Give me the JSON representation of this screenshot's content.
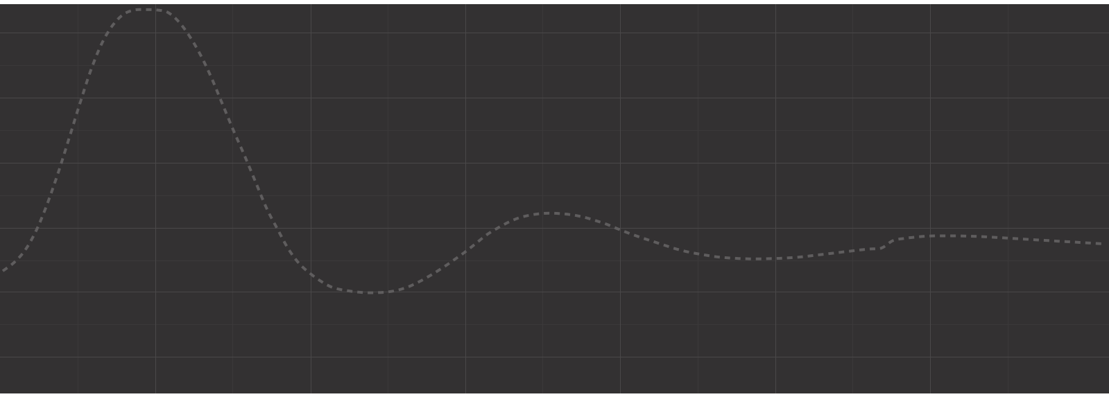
{
  "graph": {
    "type": "line",
    "line_style": "dashed",
    "grid": true,
    "colors": {
      "background": "#333132",
      "grid_major": "#4a4849",
      "grid_minor": "#3b393a",
      "curve": "#5f5d5e"
    },
    "curve_points": [
      [
        0.0,
        0.8
      ],
      [
        0.01,
        0.775
      ],
      [
        0.02,
        0.738
      ],
      [
        0.03,
        0.68
      ],
      [
        0.04,
        0.6
      ],
      [
        0.05,
        0.505
      ],
      [
        0.06,
        0.4
      ],
      [
        0.07,
        0.292
      ],
      [
        0.08,
        0.19
      ],
      [
        0.09,
        0.108
      ],
      [
        0.1,
        0.052
      ],
      [
        0.11,
        0.018
      ],
      [
        0.12,
        0.005
      ],
      [
        0.13,
        0.004
      ],
      [
        0.14,
        0.005
      ],
      [
        0.15,
        0.012
      ],
      [
        0.16,
        0.04
      ],
      [
        0.17,
        0.085
      ],
      [
        0.18,
        0.142
      ],
      [
        0.19,
        0.212
      ],
      [
        0.2,
        0.292
      ],
      [
        0.21,
        0.372
      ],
      [
        0.22,
        0.448
      ],
      [
        0.23,
        0.528
      ],
      [
        0.24,
        0.608
      ],
      [
        0.25,
        0.672
      ],
      [
        0.26,
        0.733
      ],
      [
        0.27,
        0.778
      ],
      [
        0.28,
        0.808
      ],
      [
        0.29,
        0.832
      ],
      [
        0.3,
        0.85
      ],
      [
        0.31,
        0.858
      ],
      [
        0.32,
        0.863
      ],
      [
        0.33,
        0.866
      ],
      [
        0.34,
        0.866
      ],
      [
        0.35,
        0.864
      ],
      [
        0.36,
        0.858
      ],
      [
        0.37,
        0.847
      ],
      [
        0.38,
        0.831
      ],
      [
        0.39,
        0.812
      ],
      [
        0.4,
        0.791
      ],
      [
        0.41,
        0.768
      ],
      [
        0.42,
        0.744
      ],
      [
        0.43,
        0.718
      ],
      [
        0.44,
        0.691
      ],
      [
        0.45,
        0.67
      ],
      [
        0.46,
        0.652
      ],
      [
        0.47,
        0.638
      ],
      [
        0.48,
        0.63
      ],
      [
        0.49,
        0.625
      ],
      [
        0.5,
        0.624
      ],
      [
        0.51,
        0.626
      ],
      [
        0.52,
        0.63
      ],
      [
        0.53,
        0.637
      ],
      [
        0.54,
        0.647
      ],
      [
        0.55,
        0.658
      ],
      [
        0.56,
        0.672
      ],
      [
        0.57,
        0.685
      ],
      [
        0.58,
        0.697
      ],
      [
        0.59,
        0.708
      ],
      [
        0.6,
        0.719
      ],
      [
        0.61,
        0.73
      ],
      [
        0.62,
        0.739
      ],
      [
        0.63,
        0.746
      ],
      [
        0.64,
        0.752
      ],
      [
        0.65,
        0.757
      ],
      [
        0.66,
        0.76
      ],
      [
        0.67,
        0.762
      ],
      [
        0.68,
        0.763
      ],
      [
        0.69,
        0.763
      ],
      [
        0.7,
        0.762
      ],
      [
        0.71,
        0.761
      ],
      [
        0.72,
        0.759
      ],
      [
        0.73,
        0.756
      ],
      [
        0.74,
        0.752
      ],
      [
        0.75,
        0.748
      ],
      [
        0.76,
        0.744
      ],
      [
        0.77,
        0.74
      ],
      [
        0.78,
        0.736
      ],
      [
        0.79,
        0.733
      ],
      [
        0.8,
        0.73
      ],
      [
        0.81,
        0.708
      ],
      [
        0.82,
        0.701
      ],
      [
        0.83,
        0.697
      ],
      [
        0.84,
        0.694
      ],
      [
        0.85,
        0.693
      ],
      [
        0.86,
        0.693
      ],
      [
        0.87,
        0.693
      ],
      [
        0.88,
        0.694
      ],
      [
        0.89,
        0.695
      ],
      [
        0.9,
        0.697
      ],
      [
        0.91,
        0.699
      ],
      [
        0.92,
        0.701
      ],
      [
        0.93,
        0.703
      ],
      [
        0.94,
        0.705
      ],
      [
        0.95,
        0.707
      ],
      [
        0.96,
        0.709
      ],
      [
        0.97,
        0.711
      ],
      [
        0.98,
        0.713
      ],
      [
        0.99,
        0.715
      ],
      [
        1.0,
        0.717
      ]
    ]
  }
}
